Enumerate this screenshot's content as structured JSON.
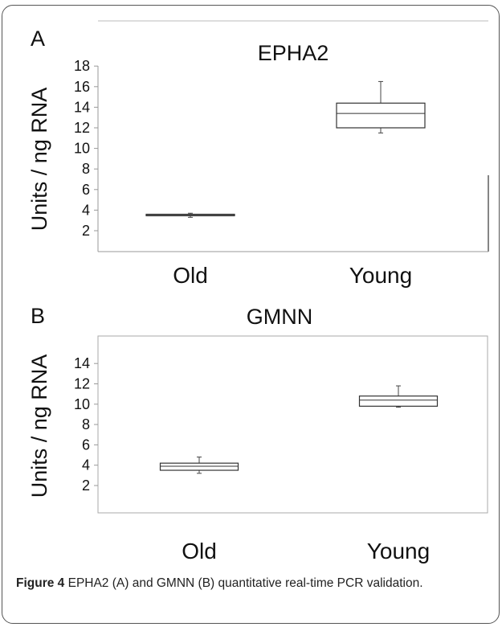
{
  "chart_data": [
    {
      "type": "box",
      "panel_label": "A",
      "title": "EPHA2",
      "ylabel": "Units / ng RNA",
      "yticks": [
        "2",
        "4",
        "6",
        "8",
        "10",
        "12",
        "14",
        "16",
        "18"
      ],
      "categories": [
        "Old",
        "Young"
      ],
      "boxes": [
        {
          "category": "Old",
          "min": 3.3,
          "q1": 3.45,
          "median": 3.5,
          "q3": 3.6,
          "max": 3.7
        },
        {
          "category": "Young",
          "min": 11.5,
          "q1": 12.0,
          "median": 13.4,
          "q3": 14.4,
          "max": 16.5
        }
      ]
    },
    {
      "type": "box",
      "panel_label": "B",
      "title": "GMNN",
      "ylabel": "Units / ng RNA",
      "yticks": [
        "2",
        "4",
        "6",
        "8",
        "10",
        "12",
        "14"
      ],
      "categories": [
        "Old",
        "Young"
      ],
      "boxes": [
        {
          "category": "Old",
          "min": 3.2,
          "q1": 3.5,
          "median": 3.9,
          "q3": 4.2,
          "max": 4.8
        },
        {
          "category": "Young",
          "min": 9.7,
          "q1": 9.8,
          "median": 10.4,
          "q3": 10.8,
          "max": 11.8
        }
      ]
    }
  ],
  "caption": {
    "label": "Figure 4",
    "text": " EPHA2 (A) and GMNN (B) quantitative real-time PCR validation."
  }
}
